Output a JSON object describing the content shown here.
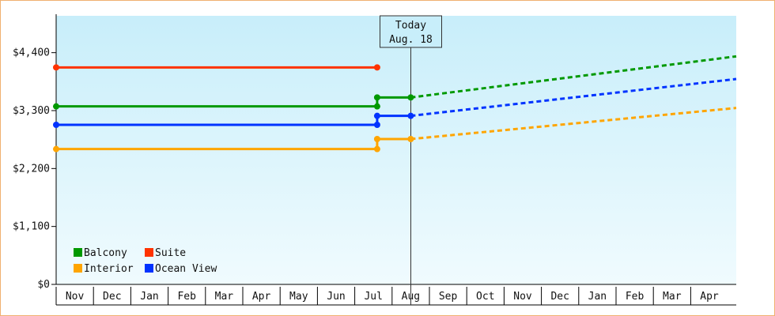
{
  "chart_data": {
    "type": "line",
    "title": "",
    "xlabel": "",
    "ylabel": "",
    "x_ticks": [
      "Nov",
      "Dec",
      "Jan",
      "Feb",
      "Mar",
      "Apr",
      "May",
      "Jun",
      "Jul",
      "Aug",
      "Sep",
      "Oct",
      "Nov",
      "Dec",
      "Jan",
      "Feb",
      "Mar",
      "Apr"
    ],
    "y_ticks": [
      0,
      1100,
      2200,
      3300,
      4400
    ],
    "y_tick_labels": [
      "$0",
      "$1,100",
      "$2,200",
      "$3,300",
      "$4,400"
    ],
    "ylim": [
      0,
      5100
    ],
    "grid": false,
    "legend_position": "bottom-left",
    "annotation": {
      "label_line1": "Today",
      "label_line2": "Aug. 18",
      "at_month_index": 9.5
    },
    "series": [
      {
        "name": "Suite",
        "color": "#ff3300",
        "historical": [
          {
            "x": 0,
            "y": 4120
          },
          {
            "x": 8.6,
            "y": 4120
          }
        ],
        "forecast": []
      },
      {
        "name": "Balcony",
        "color": "#009900",
        "historical": [
          {
            "x": 0,
            "y": 3380
          },
          {
            "x": 8.6,
            "y": 3380
          }
        ],
        "forecast": [
          {
            "x": 8.6,
            "y": 3550
          },
          {
            "x": 9.5,
            "y": 3550
          },
          {
            "x": 18.8,
            "y": 4330
          }
        ]
      },
      {
        "name": "Ocean View",
        "color": "#0033ff",
        "historical": [
          {
            "x": 0,
            "y": 3030
          },
          {
            "x": 8.6,
            "y": 3030
          }
        ],
        "forecast": [
          {
            "x": 8.6,
            "y": 3200
          },
          {
            "x": 9.5,
            "y": 3200
          },
          {
            "x": 18.8,
            "y": 3900
          }
        ]
      },
      {
        "name": "Interior",
        "color": "#ffa500",
        "historical": [
          {
            "x": 0,
            "y": 2570
          },
          {
            "x": 8.6,
            "y": 2570
          }
        ],
        "forecast": [
          {
            "x": 8.6,
            "y": 2760
          },
          {
            "x": 9.5,
            "y": 2760
          },
          {
            "x": 18.8,
            "y": 3350
          }
        ]
      }
    ],
    "legend": [
      {
        "name": "Balcony",
        "color": "#009900"
      },
      {
        "name": "Suite",
        "color": "#ff3300"
      },
      {
        "name": "Interior",
        "color": "#ffa500"
      },
      {
        "name": "Ocean View",
        "color": "#0033ff"
      }
    ]
  }
}
